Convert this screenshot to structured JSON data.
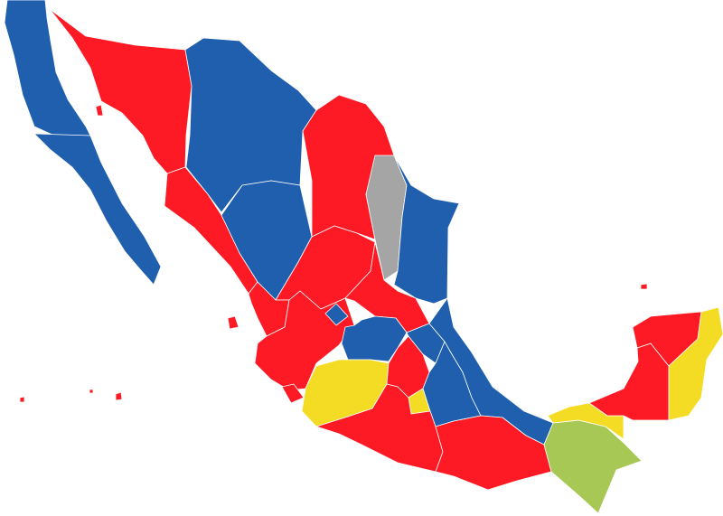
{
  "map": {
    "background": "#ffffff",
    "border_color": "#ffffff",
    "colors": {
      "blue": "#1f5fae",
      "red": "#fe1a24",
      "yellow": "#f5dc24",
      "grey": "#a5a5a5",
      "green": "#a8c855"
    }
  }
}
